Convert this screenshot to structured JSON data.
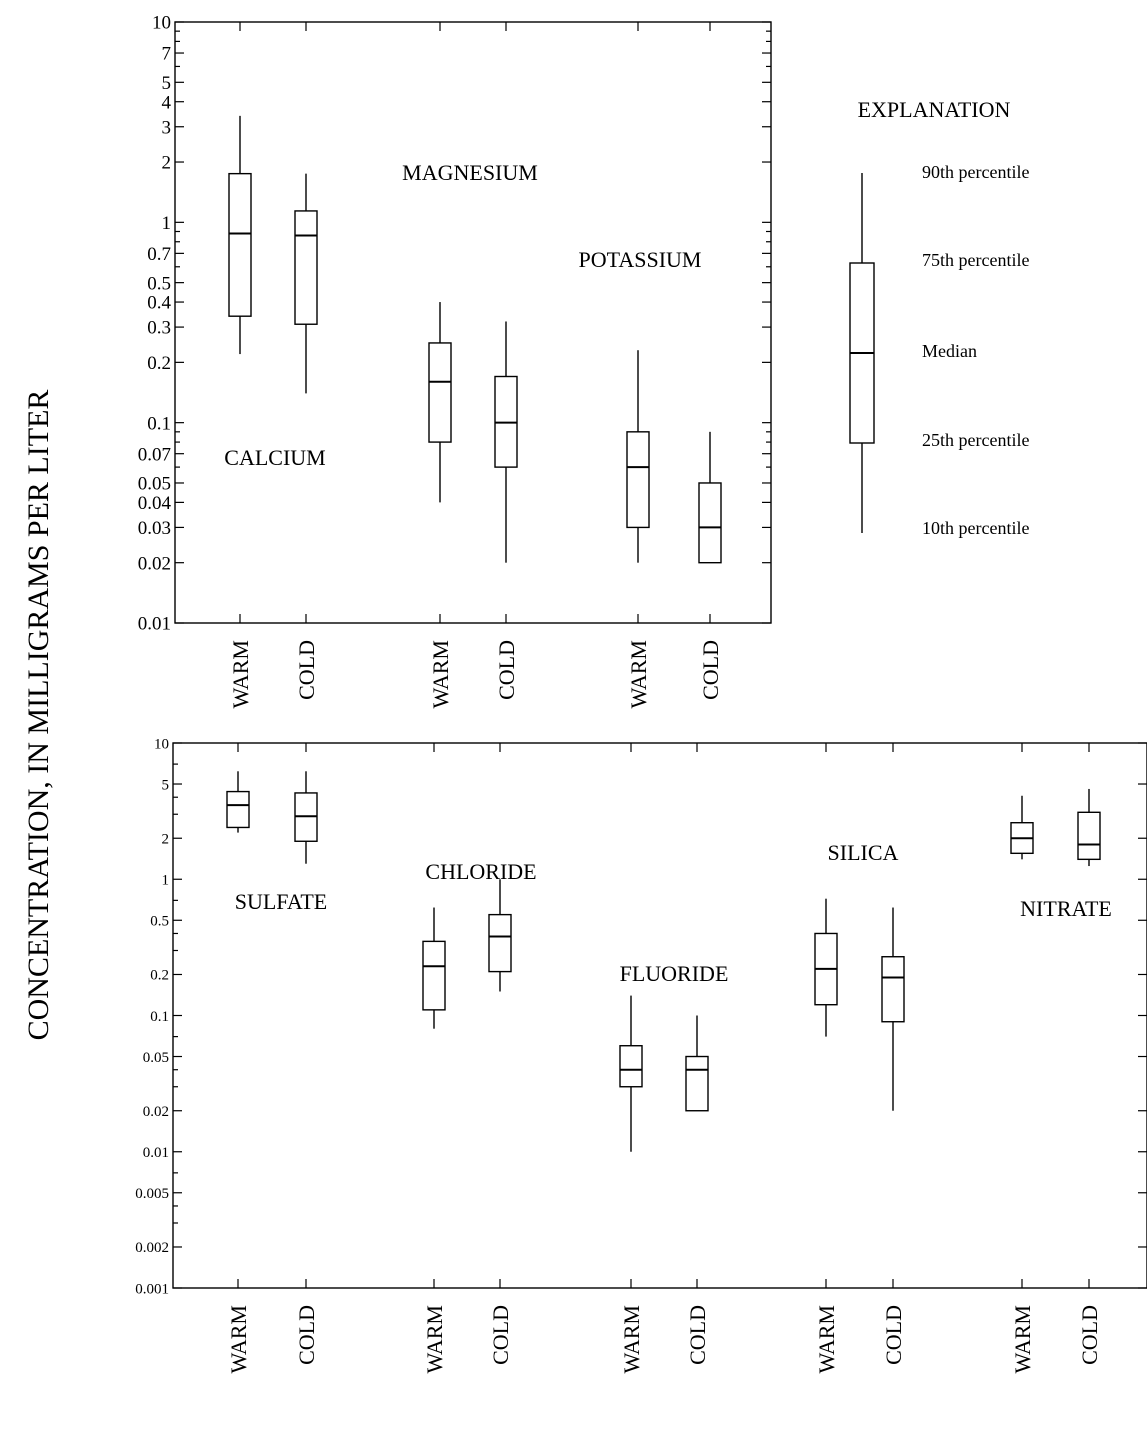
{
  "ylabel": "CONCENTRATION, IN MILLIGRAMS PER LITER",
  "explanation": {
    "title": "EXPLANATION",
    "labels": {
      "p90": "90th percentile",
      "p75": "75th percentile",
      "median": "Median",
      "p25": "25th percentile",
      "p10": "10th percentile"
    }
  },
  "chart_data": [
    {
      "type": "box",
      "yscale": "log",
      "ylim": [
        0.01,
        10
      ],
      "yticks": [
        0.01,
        0.02,
        0.03,
        0.04,
        0.05,
        0.07,
        0.1,
        0.2,
        0.3,
        0.4,
        0.5,
        0.7,
        1,
        2,
        3,
        4,
        5,
        7,
        10
      ],
      "ytick_labels": [
        "0.01",
        "0.02",
        "0.03",
        "0.04",
        "0.05",
        "0.07",
        "0.1",
        "0.2",
        "0.3",
        "0.4",
        "0.5",
        "0.7",
        "1",
        "2",
        "3",
        "4",
        "5",
        "7",
        "10"
      ],
      "groups": [
        {
          "name": "CALCIUM",
          "boxes": [
            {
              "category": "WARM",
              "p10": 0.22,
              "p25": 0.34,
              "median": 0.88,
              "p75": 1.75,
              "p90": 3.4
            },
            {
              "category": "COLD",
              "p10": 0.14,
              "p25": 0.31,
              "median": 0.86,
              "p75": 1.14,
              "p90": 1.75
            }
          ]
        },
        {
          "name": "MAGNESIUM",
          "boxes": [
            {
              "category": "WARM",
              "p10": 0.04,
              "p25": 0.08,
              "median": 0.16,
              "p75": 0.25,
              "p90": 0.4
            },
            {
              "category": "COLD",
              "p10": 0.02,
              "p25": 0.06,
              "median": 0.1,
              "p75": 0.17,
              "p90": 0.32
            }
          ]
        },
        {
          "name": "POTASSIUM",
          "boxes": [
            {
              "category": "WARM",
              "p10": 0.02,
              "p25": 0.03,
              "median": 0.06,
              "p75": 0.09,
              "p90": 0.23
            },
            {
              "category": "COLD",
              "p10": 0.02,
              "p25": 0.02,
              "median": 0.03,
              "p75": 0.05,
              "p90": 0.09
            }
          ]
        }
      ]
    },
    {
      "type": "box",
      "yscale": "log",
      "ylim": [
        0.001,
        10
      ],
      "yticks": [
        0.001,
        0.002,
        0.005,
        0.01,
        0.02,
        0.05,
        0.1,
        0.2,
        0.5,
        1,
        2,
        5,
        10
      ],
      "ytick_labels": [
        "0.001",
        "0.002",
        "0.005",
        "0.01",
        "0.02",
        "0.05",
        "0.1",
        "0.2",
        "0.5",
        "1",
        "2",
        "5",
        "10"
      ],
      "groups": [
        {
          "name": "SULFATE",
          "boxes": [
            {
              "category": "WARM",
              "p10": 2.2,
              "p25": 2.4,
              "median": 3.5,
              "p75": 4.4,
              "p90": 6.2
            },
            {
              "category": "COLD",
              "p10": 1.3,
              "p25": 1.9,
              "median": 2.9,
              "p75": 4.3,
              "p90": 6.2
            }
          ]
        },
        {
          "name": "CHLORIDE",
          "boxes": [
            {
              "category": "WARM",
              "p10": 0.08,
              "p25": 0.11,
              "median": 0.23,
              "p75": 0.35,
              "p90": 0.62
            },
            {
              "category": "COLD",
              "p10": 0.15,
              "p25": 0.21,
              "median": 0.38,
              "p75": 0.55,
              "p90": 1.0
            }
          ]
        },
        {
          "name": "FLUORIDE",
          "boxes": [
            {
              "category": "WARM",
              "p10": 0.01,
              "p25": 0.03,
              "median": 0.04,
              "p75": 0.06,
              "p90": 0.14
            },
            {
              "category": "COLD",
              "p10": 0.02,
              "p25": 0.02,
              "median": 0.04,
              "p75": 0.05,
              "p90": 0.1
            }
          ]
        },
        {
          "name": "SILICA",
          "boxes": [
            {
              "category": "WARM",
              "p10": 0.07,
              "p25": 0.12,
              "median": 0.22,
              "p75": 0.4,
              "p90": 0.72
            },
            {
              "category": "COLD",
              "p10": 0.02,
              "p25": 0.09,
              "median": 0.19,
              "p75": 0.27,
              "p90": 0.62
            }
          ]
        },
        {
          "name": "NITRATE",
          "boxes": [
            {
              "category": "WARM",
              "p10": 1.4,
              "p25": 1.55,
              "median": 2.0,
              "p75": 2.6,
              "p90": 4.1
            },
            {
              "category": "COLD",
              "p10": 1.25,
              "p25": 1.4,
              "median": 1.8,
              "p75": 3.1,
              "p90": 4.6
            }
          ]
        }
      ]
    }
  ]
}
